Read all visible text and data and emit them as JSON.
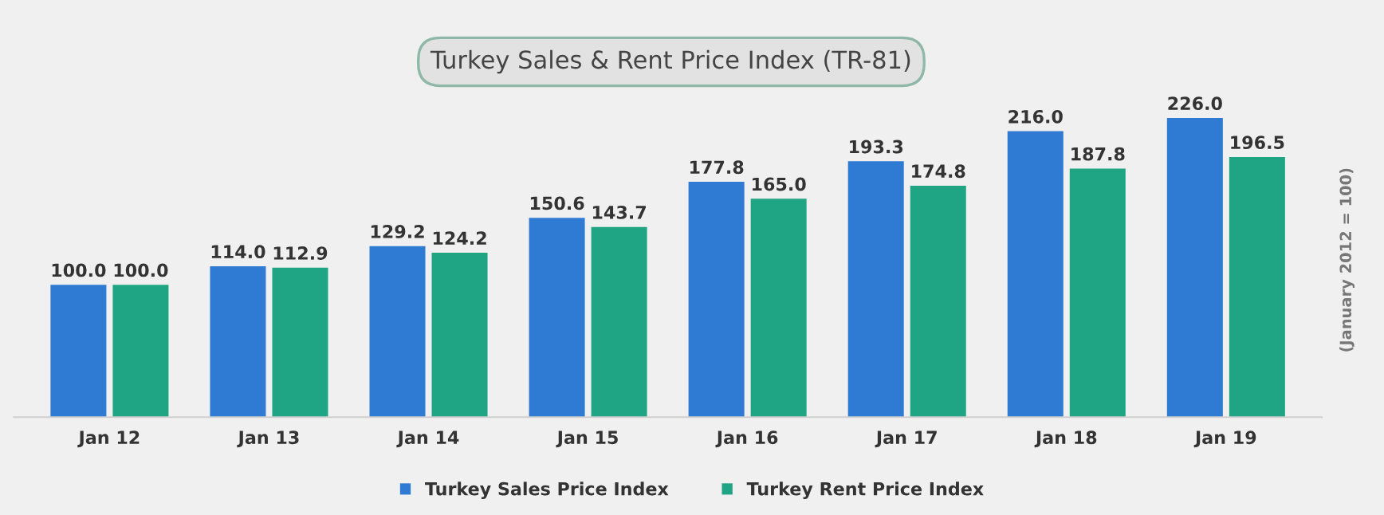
{
  "chart_data": {
    "type": "bar",
    "title": "Turkey Sales & Rent Price Index (TR-81)",
    "ylabel": "(January 2012 = 100)",
    "categories": [
      "Jan 12",
      "Jan 13",
      "Jan 14",
      "Jan 15",
      "Jan 16",
      "Jan 17",
      "Jan 18",
      "Jan 19"
    ],
    "series": [
      {
        "name": "Turkey Sales Price Index",
        "color": "#2f7bd3",
        "values": [
          100.0,
          114.0,
          129.2,
          150.6,
          177.8,
          193.3,
          216.0,
          226.0
        ],
        "value_labels": [
          "100.0",
          "114.0",
          "129.2",
          "150.6",
          "177.8",
          "193.3",
          "216.0",
          "226.0"
        ]
      },
      {
        "name": "Turkey Rent Price Index",
        "color": "#1fa584",
        "values": [
          100.0,
          112.9,
          124.2,
          143.7,
          165.0,
          174.8,
          187.8,
          196.5
        ],
        "value_labels": [
          "100.0",
          "112.9",
          "124.2",
          "143.7",
          "165.0",
          "174.8",
          "187.8",
          "196.5"
        ]
      }
    ],
    "grid": false,
    "legend": "bottom"
  }
}
